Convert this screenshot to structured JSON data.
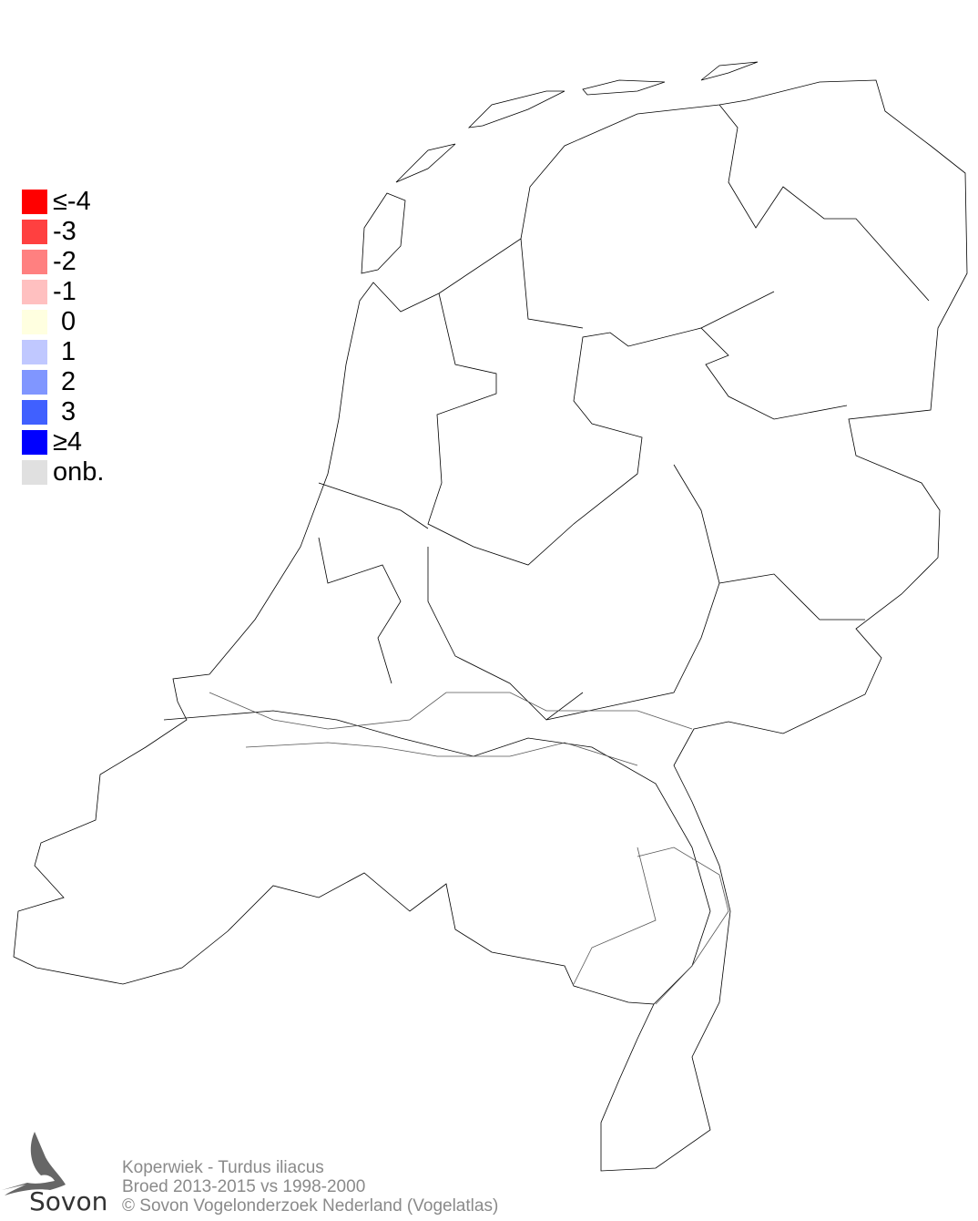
{
  "legend": {
    "items": [
      {
        "label": "≤-4",
        "color": "#ff0000"
      },
      {
        "label": "-3",
        "color": "#ff4040"
      },
      {
        "label": "-2",
        "color": "#ff8080"
      },
      {
        "label": "-1",
        "color": "#ffc0c0"
      },
      {
        "label": "0",
        "color": "#ffffe0"
      },
      {
        "label": "1",
        "color": "#c0c8ff"
      },
      {
        "label": "2",
        "color": "#8096ff"
      },
      {
        "label": "3",
        "color": "#4060ff"
      },
      {
        "label": "≥4",
        "color": "#0000ff"
      },
      {
        "label": "onb.",
        "color": "#e0e0e0"
      }
    ]
  },
  "footer": {
    "line1": "Koperwiek - Turdus iliacus",
    "line2": "Broed 2013-2015 vs 1998-2000",
    "line3": "© Sovon Vogelonderzoek Nederland (Vogelatlas)"
  },
  "logo": {
    "text": "Sovon"
  }
}
